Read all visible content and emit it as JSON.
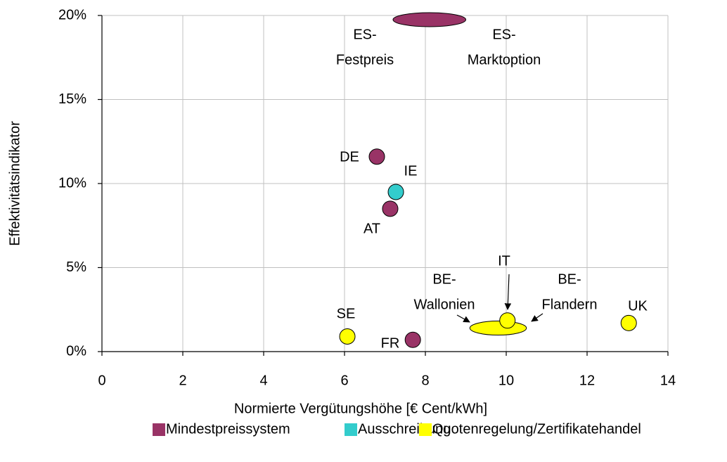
{
  "chart_data": {
    "type": "scatter",
    "xlabel": "Normierte Vergütungshöhe [€ Cent/kWh]",
    "ylabel": "Effektivitätsindikator",
    "xlim": [
      0,
      14
    ],
    "xticks": [
      0,
      2,
      4,
      6,
      8,
      10,
      12,
      14
    ],
    "ylim": [
      0,
      20
    ],
    "yticks": [
      {
        "value": 0,
        "label": "0%"
      },
      {
        "value": 5,
        "label": "5%"
      },
      {
        "value": 10,
        "label": "10%"
      },
      {
        "value": 15,
        "label": "15%"
      },
      {
        "value": 20,
        "label": "20%"
      }
    ],
    "grid": true,
    "legend": "bottom",
    "series": [
      {
        "name": "Mindestpreissystem",
        "color": "#993366",
        "points": [
          {
            "label": [
              "DE"
            ],
            "x": 6.8,
            "y": 11.6
          },
          {
            "label": [
              "AT"
            ],
            "x": 7.13,
            "y": 8.5
          },
          {
            "label": [
              "FR"
            ],
            "x": 7.69,
            "y": 0.7
          }
        ],
        "ranges": [
          {
            "labels": [
              [
                "ES-",
                "Festpreis"
              ],
              [
                "ES-",
                "Marktoption"
              ]
            ],
            "x": [
              7.2,
              9.0
            ],
            "y": 19.75
          }
        ]
      },
      {
        "name": "Ausschreibung",
        "color": "#33CCCC",
        "points": [
          {
            "label": [
              "IE"
            ],
            "x": 7.27,
            "y": 9.5
          }
        ],
        "ranges": []
      },
      {
        "name": "Quotenregelung/Zertifikatehandel",
        "color": "#FFFF00",
        "points": [
          {
            "label": [
              "SE"
            ],
            "x": 6.07,
            "y": 0.9
          },
          {
            "label": [
              "IT"
            ],
            "x": 10.03,
            "y": 1.85
          },
          {
            "label": [
              "UK"
            ],
            "x": 13.03,
            "y": 1.7
          }
        ],
        "ranges": [
          {
            "labels": [
              [
                "BE-",
                "Wallonien"
              ],
              [
                "BE-",
                "Flandern"
              ]
            ],
            "x": [
              9.1,
              10.5
            ],
            "y": 1.4
          }
        ]
      }
    ]
  }
}
